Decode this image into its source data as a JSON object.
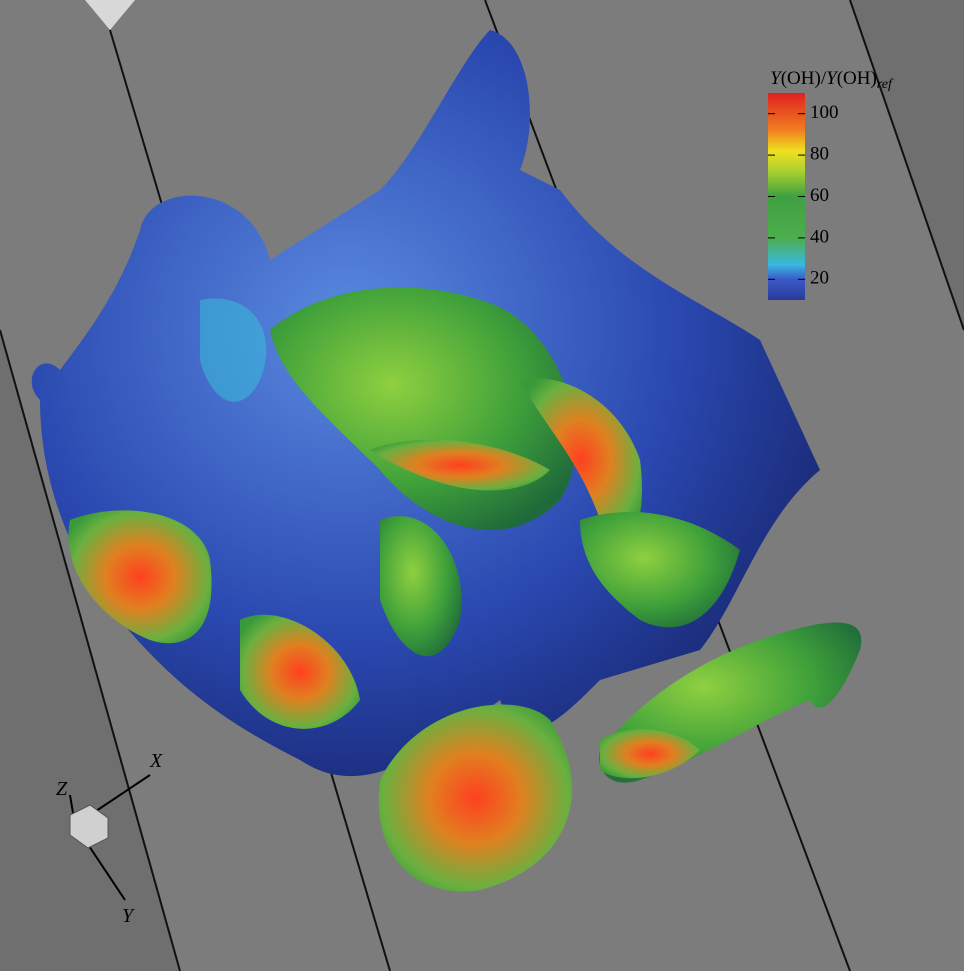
{
  "colorbar": {
    "title_parts": [
      "Y",
      "(OH)/",
      "Y",
      "(OH)",
      "ref"
    ],
    "lim": [
      10,
      110
    ],
    "ticks": [
      20,
      40,
      60,
      80,
      100
    ]
  },
  "axes": {
    "x": "X",
    "y": "Y",
    "z": "Z"
  }
}
